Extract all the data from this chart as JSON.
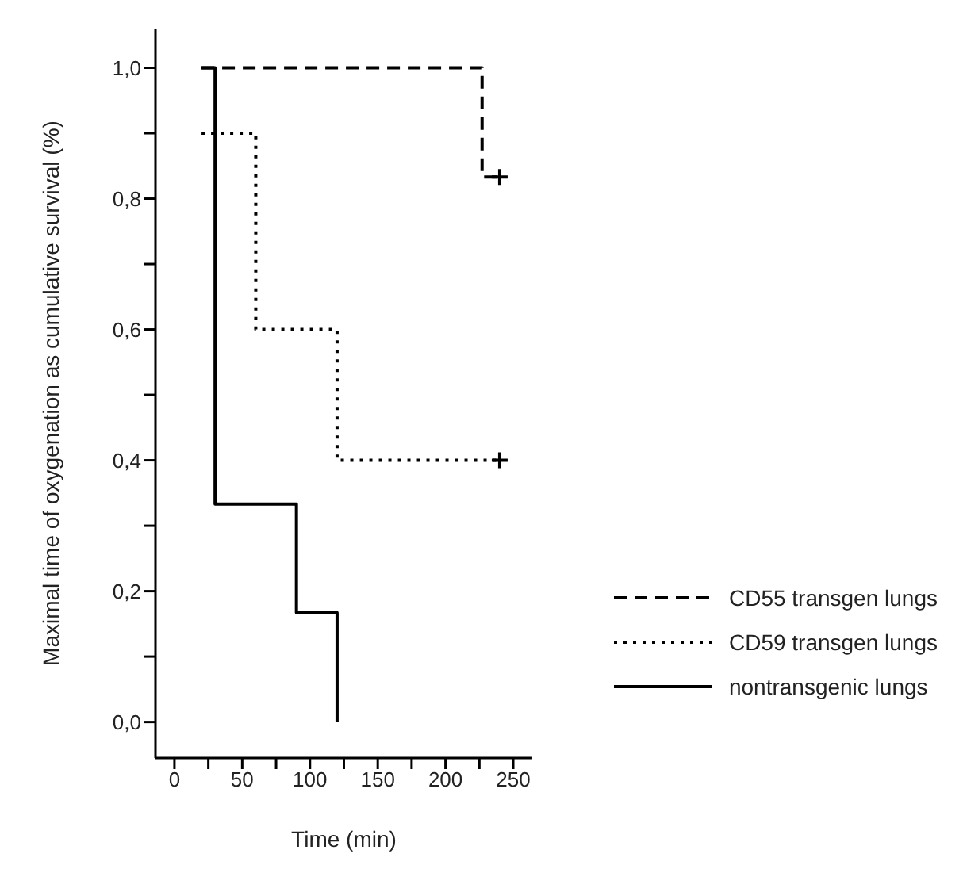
{
  "chart_data": {
    "type": "step",
    "xlabel": "Time (min)",
    "ylabel": "Maximal time of oxygenation as cumulative survival (%)",
    "xlim": [
      -14,
      264
    ],
    "ylim": [
      -0.055,
      1.06
    ],
    "xticks": [
      0,
      {
        "value": 25,
        "label": null
      },
      50,
      {
        "value": 75,
        "label": null
      },
      100,
      {
        "value": 125,
        "label": null
      },
      150,
      {
        "value": 175,
        "label": null
      },
      200,
      {
        "value": 225,
        "label": null
      },
      250
    ],
    "yticks": [
      {
        "value": 0,
        "label": "0,0"
      },
      {
        "value": 0.1,
        "label": null
      },
      {
        "value": 0.2,
        "label": "0,2"
      },
      {
        "value": 0.3,
        "label": null
      },
      {
        "value": 0.4,
        "label": "0,4"
      },
      {
        "value": 0.5,
        "label": null
      },
      {
        "value": 0.6,
        "label": "0,6"
      },
      {
        "value": 0.7,
        "label": null
      },
      {
        "value": 0.8,
        "label": "0,8"
      },
      {
        "value": 0.9,
        "label": null
      },
      {
        "value": 1,
        "label": "1,0"
      }
    ],
    "grid": false,
    "legend": "bottom right",
    "series": [
      {
        "name": "CD55 transgen lungs",
        "color": "#000000",
        "line_style": "dashed",
        "x": [
          20,
          227,
          240
        ],
        "values": [
          1,
          0.833,
          0.833
        ]
      },
      {
        "name": "CD59 transgen lungs",
        "color": "#000000",
        "line_style": "dotted",
        "x": [
          20,
          60,
          120,
          240
        ],
        "values": [
          0.9,
          0.6,
          0.4,
          0.4
        ]
      },
      {
        "name": "nontransgenic lungs",
        "color": "#000000",
        "line_style": "solid",
        "x": [
          20,
          30,
          90,
          120
        ],
        "values": [
          1,
          0.333,
          0.167,
          0
        ]
      },
      {
        "type": "scatter",
        "marker": "cross",
        "color": "#000000",
        "x": [
          240,
          240
        ],
        "values": [
          0.833,
          0.4
        ]
      }
    ]
  }
}
